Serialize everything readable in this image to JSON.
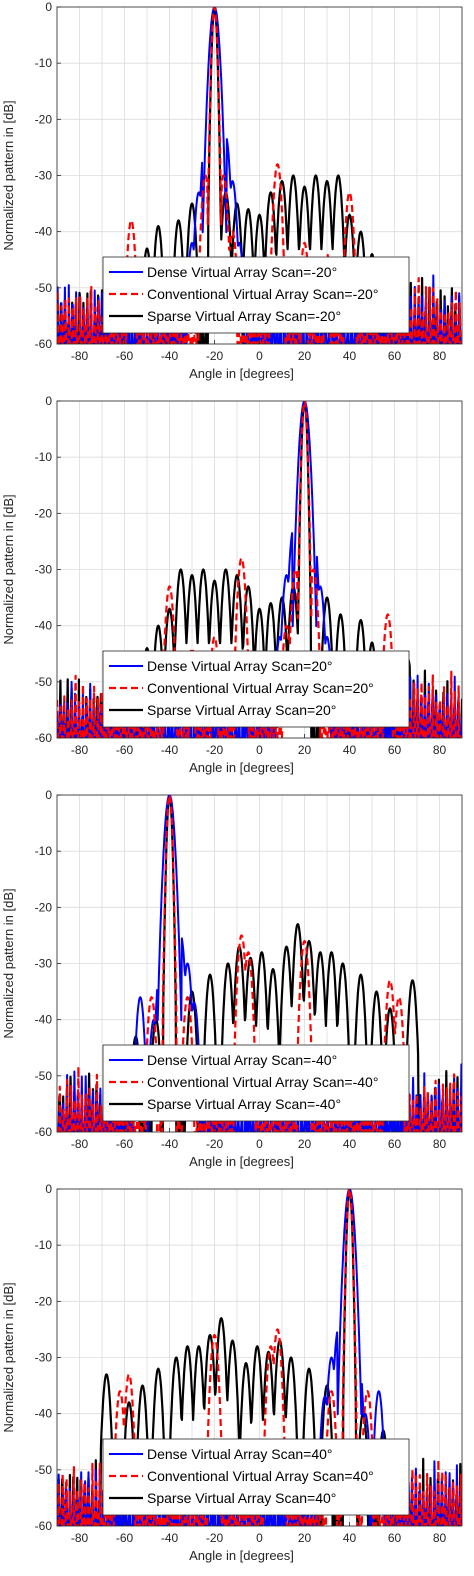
{
  "colors": {
    "dense": "#0000ff",
    "conventional": "#ff0000",
    "sparse": "#000000",
    "grid": "#dcdcdc",
    "axis": "#262626"
  },
  "chart_data": [
    {
      "type": "line",
      "xlabel": "Angle in [degrees]",
      "ylabel": "Normalized pattern in [dB]",
      "xlim": [
        -90,
        90
      ],
      "ylim": [
        -60,
        0
      ],
      "xticks": [
        -80,
        -60,
        -40,
        -20,
        0,
        20,
        40,
        60,
        80
      ],
      "yticks": [
        0,
        -10,
        -20,
        -30,
        -40,
        -50,
        -60
      ],
      "grid": true,
      "legend_position": "bottom-center",
      "scan": -20,
      "series": [
        {
          "name": "Dense Virtual Array Scan=-20°",
          "key": "dense",
          "style": "solid",
          "sidelobes": [
            [
              -27,
              -33
            ],
            [
              -24,
              -23
            ],
            [
              -15,
              -23
            ],
            [
              -12,
              -31
            ],
            [
              -30,
              -42
            ],
            [
              -9,
              -42
            ]
          ]
        },
        {
          "name": "Conventional Virtual Array Scan=-20°",
          "key": "conventional",
          "style": "dashed",
          "sidelobes": [
            [
              -57,
              -38
            ],
            [
              -24,
              -30
            ],
            [
              -16,
              -30
            ],
            [
              8,
              -28
            ],
            [
              40,
              -33
            ],
            [
              -12,
              -40
            ],
            [
              20,
              -42
            ],
            [
              30,
              -44
            ]
          ]
        },
        {
          "name": "Sparse Virtual Array Scan=-20°",
          "key": "sparse",
          "style": "solid",
          "sidelobes": [
            [
              -66,
              -46
            ],
            [
              -50,
              -43
            ],
            [
              -45,
              -39
            ],
            [
              -36,
              -38
            ],
            [
              -30,
              -35
            ],
            [
              -15,
              -33
            ],
            [
              -10,
              -35
            ],
            [
              -5,
              -36
            ],
            [
              0,
              -37
            ],
            [
              5,
              -33
            ],
            [
              10,
              -31
            ],
            [
              15,
              -30
            ],
            [
              20,
              -32
            ],
            [
              25,
              -30
            ],
            [
              30,
              -31
            ],
            [
              35,
              -30
            ],
            [
              40,
              -37
            ],
            [
              45,
              -40
            ],
            [
              50,
              -44
            ],
            [
              60,
              -46
            ],
            [
              70,
              -57
            ]
          ]
        }
      ]
    },
    {
      "type": "line",
      "xlabel": "Angle in [degrees]",
      "ylabel": "Normalized pattern in [dB]",
      "xlim": [
        -90,
        90
      ],
      "ylim": [
        -60,
        0
      ],
      "xticks": [
        -80,
        -60,
        -40,
        -20,
        0,
        20,
        40,
        60,
        80
      ],
      "yticks": [
        0,
        -10,
        -20,
        -30,
        -40,
        -50,
        -60
      ],
      "grid": true,
      "legend_position": "bottom-center",
      "scan": 20,
      "series": [
        {
          "name": "Dense Virtual Array Scan=20°",
          "key": "dense",
          "style": "solid",
          "sidelobes": [
            [
              27,
              -33
            ],
            [
              24,
              -23
            ],
            [
              15,
              -23
            ],
            [
              12,
              -31
            ],
            [
              30,
              -42
            ],
            [
              9,
              -42
            ]
          ]
        },
        {
          "name": "Conventional Virtual Array Scan=20°",
          "key": "conventional",
          "style": "dashed",
          "sidelobes": [
            [
              57,
              -38
            ],
            [
              24,
              -30
            ],
            [
              16,
              -30
            ],
            [
              -8,
              -28
            ],
            [
              -40,
              -33
            ],
            [
              12,
              -40
            ],
            [
              -20,
              -42
            ],
            [
              -30,
              -44
            ]
          ]
        },
        {
          "name": "Sparse Virtual Array Scan=20°",
          "key": "sparse",
          "style": "solid",
          "sidelobes": [
            [
              66,
              -46
            ],
            [
              50,
              -43
            ],
            [
              45,
              -39
            ],
            [
              36,
              -38
            ],
            [
              30,
              -35
            ],
            [
              15,
              -33
            ],
            [
              10,
              -35
            ],
            [
              5,
              -36
            ],
            [
              0,
              -37
            ],
            [
              -5,
              -33
            ],
            [
              -10,
              -31
            ],
            [
              -15,
              -30
            ],
            [
              -20,
              -32
            ],
            [
              -25,
              -30
            ],
            [
              -30,
              -31
            ],
            [
              -35,
              -30
            ],
            [
              -40,
              -37
            ],
            [
              -45,
              -40
            ],
            [
              -50,
              -44
            ],
            [
              -60,
              -46
            ],
            [
              -70,
              -57
            ]
          ]
        }
      ]
    },
    {
      "type": "line",
      "xlabel": "Angle in [degrees]",
      "ylabel": "Normalized pattern in [dB]",
      "xlim": [
        -90,
        90
      ],
      "ylim": [
        -60,
        0
      ],
      "xticks": [
        -80,
        -60,
        -40,
        -20,
        0,
        20,
        40,
        60,
        80
      ],
      "yticks": [
        0,
        -10,
        -20,
        -30,
        -40,
        -50,
        -60
      ],
      "grid": true,
      "legend_position": "bottom-center",
      "scan": -40,
      "series": [
        {
          "name": "Dense Virtual Array Scan=-40°",
          "key": "dense",
          "style": "solid",
          "sidelobes": [
            [
              -53,
              -36
            ],
            [
              -47,
              -40
            ],
            [
              -44,
              -30
            ],
            [
              -35,
              -25
            ],
            [
              -32,
              -30
            ],
            [
              -29,
              -37
            ]
          ]
        },
        {
          "name": "Conventional Virtual Array Scan=-40°",
          "key": "conventional",
          "style": "dashed",
          "sidelobes": [
            [
              -48,
              -36
            ],
            [
              -32,
              -36
            ],
            [
              -8,
              -25
            ],
            [
              -5,
              -28
            ],
            [
              20,
              -26
            ],
            [
              58,
              -33
            ],
            [
              62,
              -36
            ]
          ]
        },
        {
          "name": "Sparse Virtual Array Scan=-40°",
          "key": "sparse",
          "style": "solid",
          "sidelobes": [
            [
              -69,
              -50
            ],
            [
              -55,
              -43
            ],
            [
              -46,
              -40
            ],
            [
              -30,
              -35
            ],
            [
              -22,
              -32
            ],
            [
              -14,
              -30
            ],
            [
              -9,
              -27
            ],
            [
              -4,
              -29
            ],
            [
              1,
              -28
            ],
            [
              6,
              -31
            ],
            [
              12,
              -27
            ],
            [
              17,
              -23
            ],
            [
              22,
              -26
            ],
            [
              27,
              -28
            ],
            [
              32,
              -28
            ],
            [
              37,
              -30
            ],
            [
              45,
              -32
            ],
            [
              52,
              -35
            ],
            [
              58,
              -38
            ],
            [
              68,
              -33
            ],
            [
              78,
              -57
            ]
          ]
        }
      ]
    },
    {
      "type": "line",
      "xlabel": "Angle in [degrees]",
      "ylabel": "Normalized pattern in [dB]",
      "xlim": [
        -90,
        90
      ],
      "ylim": [
        -60,
        0
      ],
      "xticks": [
        -80,
        -60,
        -40,
        -20,
        0,
        20,
        40,
        60,
        80
      ],
      "yticks": [
        0,
        -10,
        -20,
        -30,
        -40,
        -50,
        -60
      ],
      "grid": true,
      "legend_position": "bottom-center",
      "scan": 40,
      "series": [
        {
          "name": "Dense Virtual Array Scan=40°",
          "key": "dense",
          "style": "solid",
          "sidelobes": [
            [
              53,
              -36
            ],
            [
              47,
              -40
            ],
            [
              44,
              -30
            ],
            [
              35,
              -25
            ],
            [
              32,
              -30
            ],
            [
              29,
              -37
            ]
          ]
        },
        {
          "name": "Conventional Virtual Array Scan=40°",
          "key": "conventional",
          "style": "dashed",
          "sidelobes": [
            [
              48,
              -36
            ],
            [
              32,
              -36
            ],
            [
              8,
              -25
            ],
            [
              5,
              -28
            ],
            [
              -20,
              -26
            ],
            [
              -58,
              -33
            ],
            [
              -62,
              -36
            ]
          ]
        },
        {
          "name": "Sparse Virtual Array Scan=40°",
          "key": "sparse",
          "style": "solid",
          "sidelobes": [
            [
              69,
              -50
            ],
            [
              55,
              -43
            ],
            [
              46,
              -40
            ],
            [
              30,
              -35
            ],
            [
              22,
              -32
            ],
            [
              14,
              -30
            ],
            [
              9,
              -27
            ],
            [
              4,
              -29
            ],
            [
              -1,
              -28
            ],
            [
              -6,
              -31
            ],
            [
              -12,
              -27
            ],
            [
              -17,
              -23
            ],
            [
              -22,
              -26
            ],
            [
              -27,
              -28
            ],
            [
              -32,
              -28
            ],
            [
              -37,
              -30
            ],
            [
              -45,
              -32
            ],
            [
              -52,
              -35
            ],
            [
              -58,
              -38
            ],
            [
              -68,
              -33
            ],
            [
              -78,
              -57
            ]
          ]
        }
      ]
    }
  ]
}
